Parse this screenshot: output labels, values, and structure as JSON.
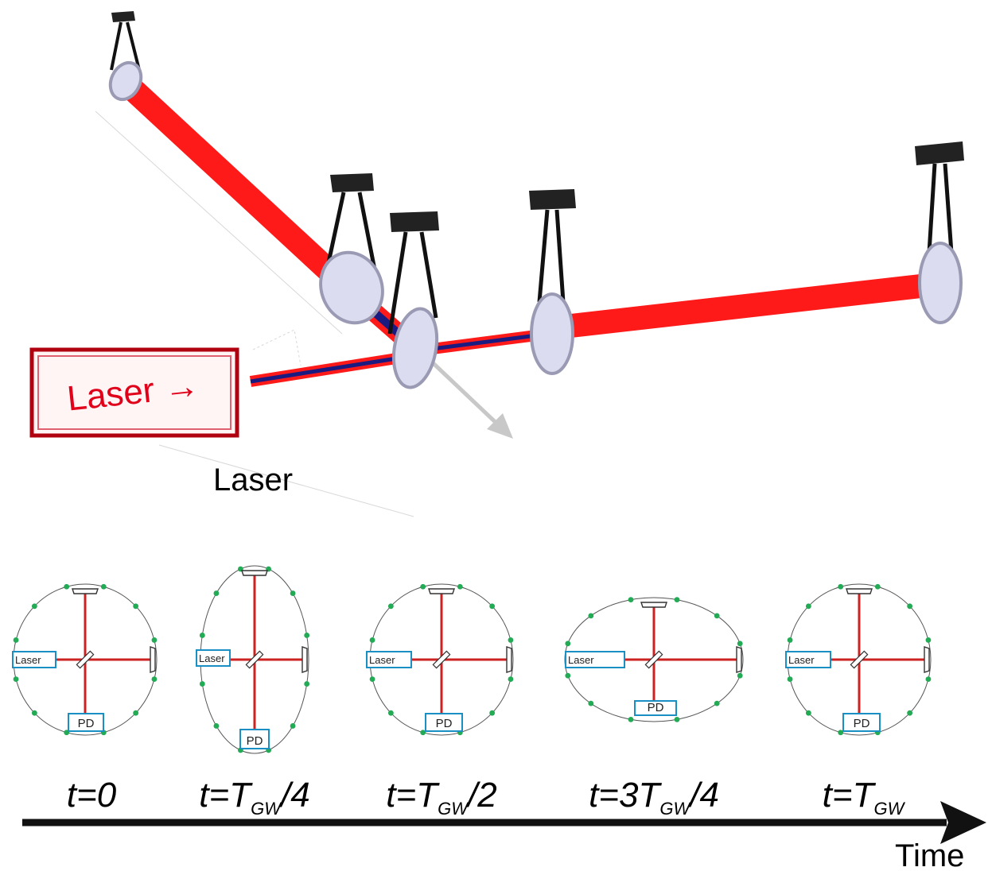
{
  "colors": {
    "beam": "#ff1a1a",
    "beam_inner": "#1a1a80",
    "mirror_face": "#dcdcf0",
    "mirror_edge": "#9a9ab4",
    "suspension": "#111111",
    "ring": "#555555",
    "test_mass_dot": "#22aa55",
    "arm": "#cc2222",
    "box_stroke": "#1a8fc4",
    "laser_box_border": "#b00010",
    "laser_box_text": "#e0001a",
    "arrow": "#111111",
    "output_arrow": "#c8c8c8"
  },
  "top_diagram": {
    "laser_box_label": "Laser →",
    "laser_label": "Laser"
  },
  "panels": [
    {
      "box_label": "Laser",
      "pd_label": "PD",
      "time_main": "t=0",
      "time_sub": "",
      "time_tail": ""
    },
    {
      "box_label": "Laser",
      "pd_label": "PD",
      "time_main": "t=T",
      "time_sub": "GW",
      "time_tail": "/4"
    },
    {
      "box_label": "Laser",
      "pd_label": "PD",
      "time_main": "t=T",
      "time_sub": "GW",
      "time_tail": "/2"
    },
    {
      "box_label": "Laser",
      "pd_label": "PD",
      "time_main": "t=3T",
      "time_sub": "GW",
      "time_tail": "/4"
    },
    {
      "box_label": "Laser",
      "pd_label": "PD",
      "time_main": "t=T",
      "time_sub": "GW",
      "time_tail": ""
    }
  ],
  "axis": {
    "label": "Time"
  }
}
